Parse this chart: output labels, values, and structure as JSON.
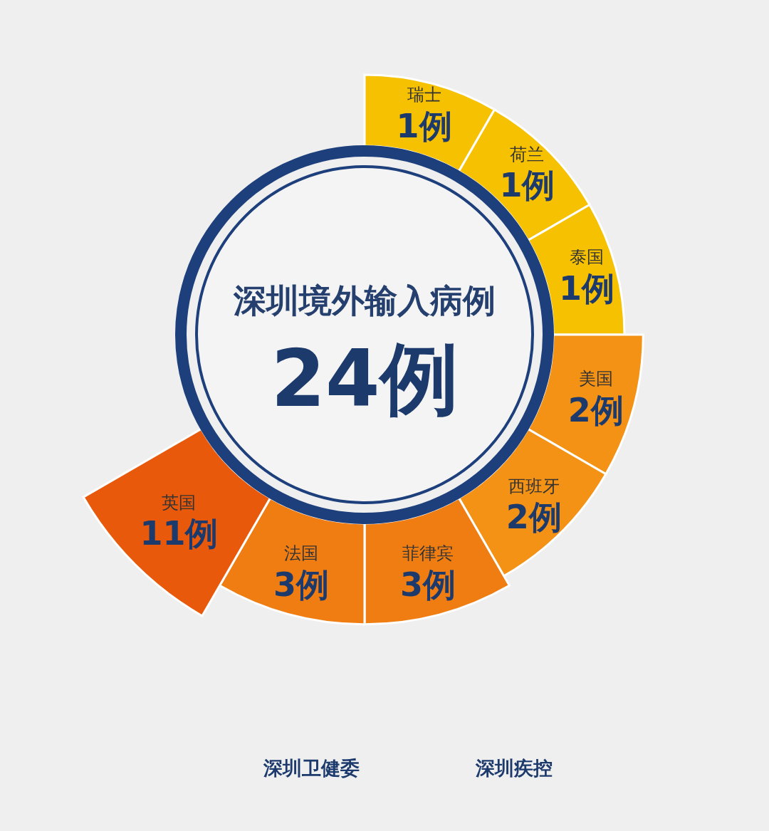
{
  "chart_data": {
    "type": "other",
    "title": "深圳境外输入病例",
    "categories": [
      "瑞士",
      "荷兰",
      "泰国",
      "美国",
      "西班牙",
      "菲律宾",
      "法国",
      "英国"
    ],
    "values": [
      1,
      1,
      1,
      2,
      2,
      3,
      3,
      11
    ],
    "value_labels": [
      "1例",
      "1例",
      "1例",
      "2例",
      "2例",
      "3例",
      "3例",
      "11例"
    ],
    "colors": [
      "#f6c100",
      "#f6c100",
      "#f6c100",
      "#f39215",
      "#f39215",
      "#f07d12",
      "#f07d12",
      "#e8590c"
    ],
    "annotations": [
      "24例",
      "深圳卫健委",
      "深圳疾控"
    ]
  }
}
